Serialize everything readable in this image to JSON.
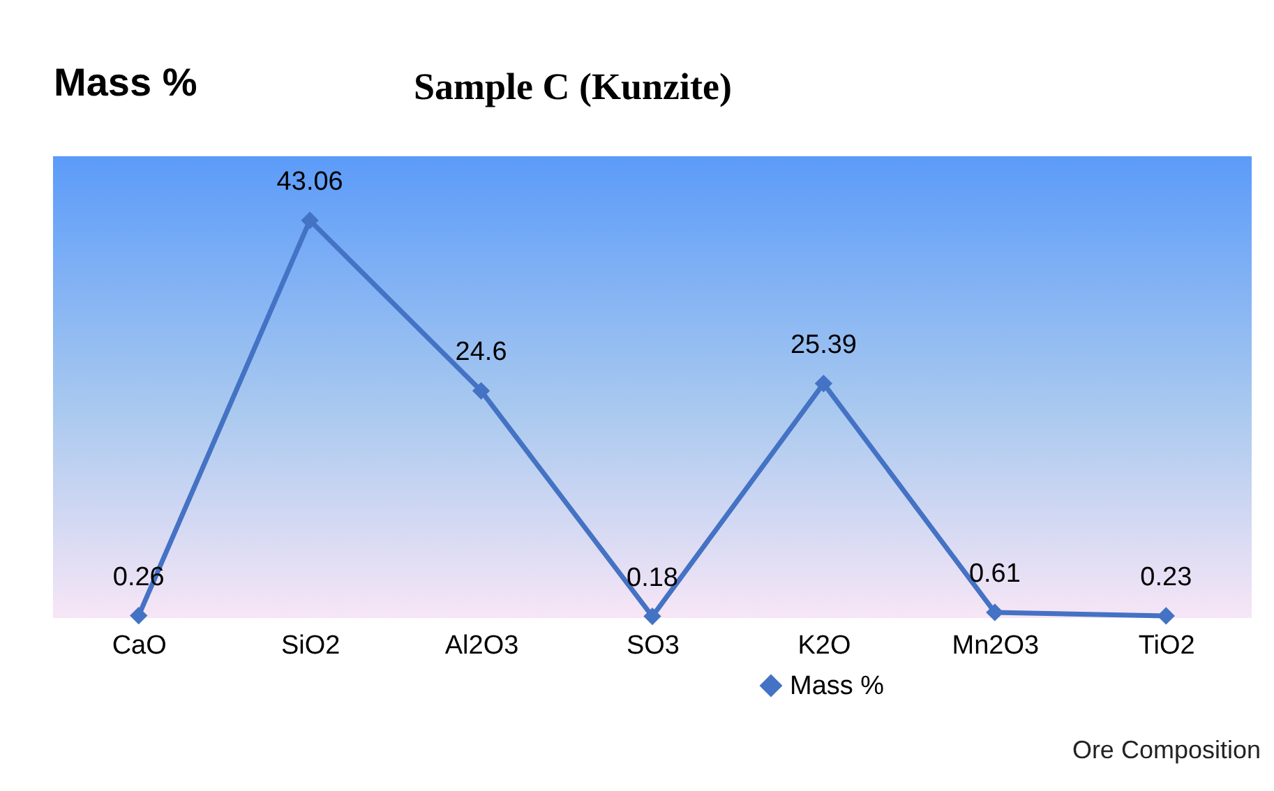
{
  "chart_data": {
    "type": "line",
    "title": "Sample C  (Kunzite)",
    "ylabel": "Mass %",
    "xlabel": "Ore Composition",
    "categories": [
      "CaO",
      "SiO2",
      "Al2O3",
      "SO3",
      "K2O",
      "Mn2O3",
      "TiO2"
    ],
    "series": [
      {
        "name": "Mass %",
        "color": "#4472c4",
        "values": [
          0.26,
          43.06,
          24.6,
          0.18,
          25.39,
          0.61,
          0.23
        ]
      }
    ],
    "ylim": [
      0,
      50
    ],
    "tick_labels": "x",
    "data_labels": true,
    "marker": "diamond",
    "line_style": "solid",
    "legend": "bottom",
    "grid": false
  }
}
